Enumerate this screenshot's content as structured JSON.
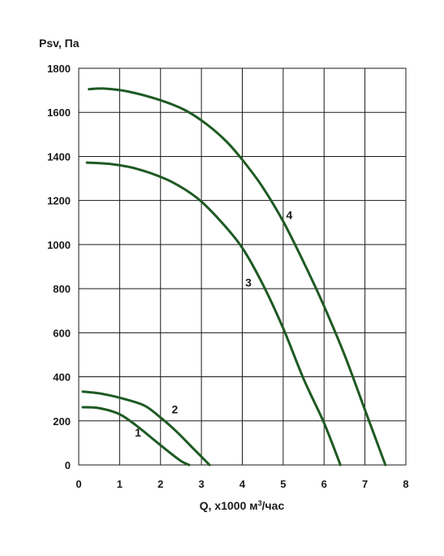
{
  "chart_data": {
    "type": "line",
    "ylabel": "Psv, Па",
    "xlabel_main": "Q, х1000 м",
    "xlabel_sup": "3",
    "xlabel_tail": "/час",
    "xlim": [
      0,
      8
    ],
    "ylim": [
      0,
      1800
    ],
    "xticks": [
      "0",
      "1",
      "2",
      "3",
      "4",
      "5",
      "6",
      "7",
      "8"
    ],
    "yticks": [
      "0",
      "200",
      "400",
      "600",
      "800",
      "1000",
      "1200",
      "1400",
      "1600",
      "1800"
    ],
    "grid": true,
    "line_color": "#1e5a23",
    "series": [
      {
        "name": "1",
        "x": [
          0.1,
          0.5,
          1.0,
          1.4,
          1.8,
          2.2,
          2.5,
          2.7
        ],
        "y": [
          262,
          258,
          230,
          180,
          120,
          60,
          18,
          0
        ]
      },
      {
        "name": "2",
        "x": [
          0.1,
          0.5,
          1.0,
          1.6,
          2.0,
          2.4,
          2.8,
          3.2
        ],
        "y": [
          333,
          325,
          305,
          270,
          215,
          150,
          75,
          0
        ]
      },
      {
        "name": "3",
        "x": [
          0.2,
          0.8,
          1.4,
          2.1,
          2.6,
          3.0,
          3.5,
          4.0,
          4.5,
          5.0,
          5.5,
          6.0,
          6.4
        ],
        "y": [
          1372,
          1365,
          1345,
          1300,
          1250,
          1195,
          1100,
          985,
          820,
          620,
          390,
          190,
          0
        ]
      },
      {
        "name": "4",
        "x": [
          0.25,
          0.6,
          1.2,
          2.0,
          2.6,
          3.1,
          3.6,
          4.0,
          4.5,
          5.0,
          5.5,
          6.0,
          6.5,
          7.0,
          7.5
        ],
        "y": [
          1705,
          1708,
          1695,
          1655,
          1610,
          1550,
          1470,
          1385,
          1260,
          1105,
          920,
          720,
          500,
          250,
          0
        ]
      }
    ]
  }
}
